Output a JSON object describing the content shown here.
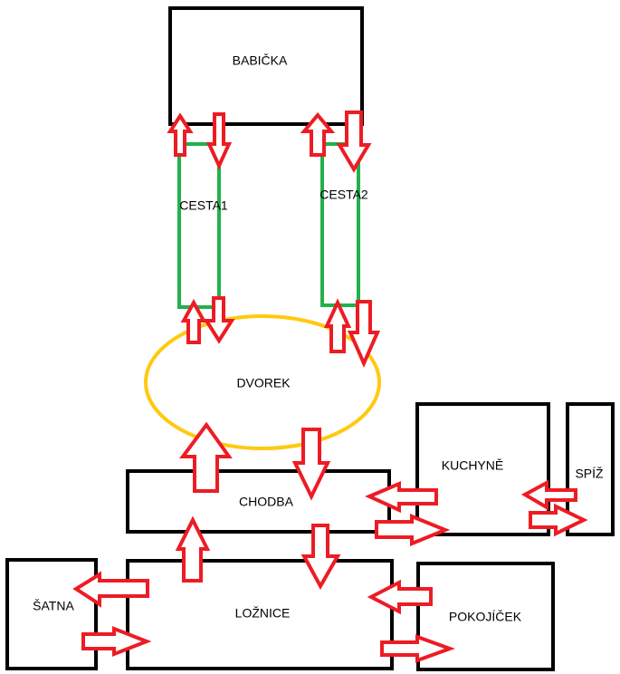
{
  "colors": {
    "room_border": "#000000",
    "path_border": "#22b14c",
    "yard_border": "#ffc90e",
    "arrow": "#ed1c24"
  },
  "rooms": {
    "babicka": "BABIČKA",
    "cesta1": "CESTA1",
    "cesta2": "CESTA2",
    "dvorek": "DVOREK",
    "chodba": "CHODBA",
    "kuchyne": "KUCHYNĚ",
    "spiz": "SPÍŽ",
    "satna": "ŠATNA",
    "loznice": "LOŽNICE",
    "pokojicek": "POKOJÍČEK"
  }
}
